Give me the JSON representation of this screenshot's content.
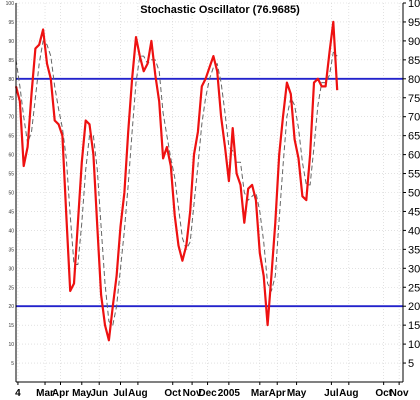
{
  "chart_data": {
    "type": "line",
    "title": "Stochastic Oscillator (76.9685)",
    "ylim": [
      0,
      100
    ],
    "xlim": [
      0,
      100
    ],
    "y_ticks": [
      5,
      10,
      15,
      20,
      25,
      30,
      35,
      40,
      45,
      50,
      55,
      60,
      65,
      70,
      75,
      80,
      85,
      90,
      95,
      100
    ],
    "x_ticks": [
      {
        "label": "4",
        "x": 0.5
      },
      {
        "label": "Mar",
        "x": 7.5
      },
      {
        "label": "Apr",
        "x": 11.5
      },
      {
        "label": "May",
        "x": 17
      },
      {
        "label": "Jun",
        "x": 21.5
      },
      {
        "label": "Jul",
        "x": 27
      },
      {
        "label": "Aug",
        "x": 31.5
      },
      {
        "label": "Oct",
        "x": 40.5
      },
      {
        "label": "Nov",
        "x": 45.5
      },
      {
        "label": "Dec",
        "x": 49.5
      },
      {
        "label": "2005",
        "x": 55
      },
      {
        "label": "Mar",
        "x": 63
      },
      {
        "label": "Apr",
        "x": 67.5
      },
      {
        "label": "May",
        "x": 72.5
      },
      {
        "label": "Jul",
        "x": 81.5
      },
      {
        "label": "Aug",
        "x": 86
      },
      {
        "label": "Oct",
        "x": 95
      },
      {
        "label": "Nov",
        "x": 99
      }
    ],
    "reference_lines": [
      {
        "value": 80,
        "color": "#2222cc"
      },
      {
        "value": 20,
        "color": "#2222cc"
      }
    ],
    "grid": true,
    "series": [
      {
        "color": "#ee1111",
        "style": "solid",
        "points": [
          [
            0,
            78
          ],
          [
            1,
            74
          ],
          [
            2,
            57
          ],
          [
            3,
            62
          ],
          [
            4,
            76
          ],
          [
            5,
            88
          ],
          [
            6,
            89
          ],
          [
            7,
            93
          ],
          [
            8,
            84
          ],
          [
            9,
            80
          ],
          [
            10,
            69
          ],
          [
            11,
            68
          ],
          [
            12,
            65
          ],
          [
            13,
            44
          ],
          [
            14,
            24
          ],
          [
            15,
            26
          ],
          [
            16,
            42
          ],
          [
            17,
            58
          ],
          [
            18,
            69
          ],
          [
            19,
            68
          ],
          [
            20,
            60
          ],
          [
            21,
            41
          ],
          [
            22,
            23
          ],
          [
            23,
            15
          ],
          [
            24,
            11
          ],
          [
            25,
            20
          ],
          [
            26,
            28
          ],
          [
            27,
            41
          ],
          [
            28,
            50
          ],
          [
            29,
            66
          ],
          [
            30,
            80
          ],
          [
            31,
            91
          ],
          [
            32,
            86
          ],
          [
            33,
            82
          ],
          [
            34,
            84
          ],
          [
            35,
            90
          ],
          [
            36,
            81
          ],
          [
            37,
            74
          ],
          [
            38,
            59
          ],
          [
            39,
            62
          ],
          [
            40,
            57
          ],
          [
            41,
            44
          ],
          [
            42,
            36
          ],
          [
            43,
            32
          ],
          [
            44,
            36
          ],
          [
            45,
            45
          ],
          [
            46,
            60
          ],
          [
            47,
            66
          ],
          [
            48,
            78
          ],
          [
            49,
            80
          ],
          [
            50,
            83
          ],
          [
            51,
            86
          ],
          [
            52,
            82
          ],
          [
            53,
            70
          ],
          [
            54,
            62
          ],
          [
            55,
            53
          ],
          [
            56,
            67
          ],
          [
            57,
            55
          ],
          [
            58,
            52
          ],
          [
            59,
            42
          ],
          [
            60,
            51
          ],
          [
            61,
            52
          ],
          [
            62,
            48
          ],
          [
            63,
            34
          ],
          [
            64,
            28
          ],
          [
            65,
            15
          ],
          [
            66,
            28
          ],
          [
            67,
            42
          ],
          [
            68,
            60
          ],
          [
            69,
            70
          ],
          [
            70,
            79
          ],
          [
            71,
            76
          ],
          [
            72,
            64
          ],
          [
            73,
            59
          ],
          [
            74,
            49
          ],
          [
            75,
            48
          ],
          [
            76,
            60
          ],
          [
            77,
            79
          ],
          [
            78,
            80
          ],
          [
            79,
            78
          ],
          [
            80,
            78
          ],
          [
            81,
            87
          ],
          [
            82,
            95
          ],
          [
            83,
            77
          ]
        ]
      },
      {
        "color": "#666666",
        "style": "dashed",
        "points": [
          [
            0,
            85
          ],
          [
            1,
            78
          ],
          [
            2,
            70
          ],
          [
            3,
            63
          ],
          [
            4,
            66
          ],
          [
            5,
            75
          ],
          [
            6,
            84
          ],
          [
            7,
            90
          ],
          [
            8,
            89
          ],
          [
            9,
            86
          ],
          [
            10,
            78
          ],
          [
            11,
            72
          ],
          [
            12,
            67
          ],
          [
            13,
            59
          ],
          [
            14,
            44
          ],
          [
            15,
            31
          ],
          [
            16,
            31
          ],
          [
            17,
            42
          ],
          [
            18,
            56
          ],
          [
            19,
            65
          ],
          [
            20,
            65
          ],
          [
            21,
            56
          ],
          [
            22,
            41
          ],
          [
            23,
            26
          ],
          [
            24,
            16
          ],
          [
            25,
            15
          ],
          [
            26,
            20
          ],
          [
            27,
            30
          ],
          [
            28,
            40
          ],
          [
            29,
            52
          ],
          [
            30,
            66
          ],
          [
            31,
            79
          ],
          [
            32,
            86
          ],
          [
            33,
            86
          ],
          [
            34,
            84
          ],
          [
            35,
            85
          ],
          [
            36,
            85
          ],
          [
            37,
            82
          ],
          [
            38,
            71
          ],
          [
            39,
            65
          ],
          [
            40,
            59
          ],
          [
            41,
            54
          ],
          [
            42,
            46
          ],
          [
            43,
            38
          ],
          [
            44,
            35
          ],
          [
            45,
            37
          ],
          [
            46,
            47
          ],
          [
            47,
            57
          ],
          [
            48,
            68
          ],
          [
            49,
            75
          ],
          [
            50,
            80
          ],
          [
            51,
            83
          ],
          [
            52,
            84
          ],
          [
            53,
            79
          ],
          [
            54,
            71
          ],
          [
            55,
            62
          ],
          [
            56,
            61
          ],
          [
            57,
            58
          ],
          [
            58,
            58
          ],
          [
            59,
            50
          ],
          [
            60,
            48
          ],
          [
            61,
            49
          ],
          [
            62,
            50
          ],
          [
            63,
            45
          ],
          [
            64,
            37
          ],
          [
            65,
            26
          ],
          [
            66,
            24
          ],
          [
            67,
            28
          ],
          [
            68,
            43
          ],
          [
            69,
            57
          ],
          [
            70,
            70
          ],
          [
            71,
            75
          ],
          [
            72,
            73
          ],
          [
            73,
            67
          ],
          [
            74,
            58
          ],
          [
            75,
            52
          ],
          [
            76,
            52
          ],
          [
            77,
            62
          ],
          [
            78,
            73
          ],
          [
            79,
            79
          ],
          [
            80,
            79
          ],
          [
            81,
            81
          ],
          [
            82,
            87
          ],
          [
            83,
            86
          ]
        ]
      }
    ]
  }
}
